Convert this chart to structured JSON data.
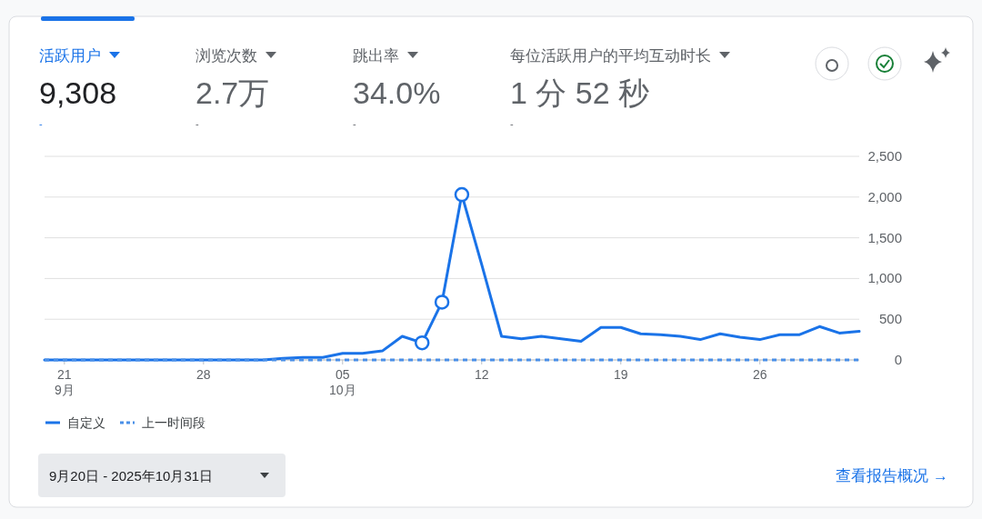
{
  "chart_data": [
    {
      "type": "other",
      "annotations": [
        "活跃用户",
        "9,308",
        "-",
        "浏览次数",
        "2.7万",
        "-",
        "跳出率",
        "34.0%",
        "-",
        "每位活跃用户的平均互动时长",
        "1 分 52 秒",
        "-"
      ]
    },
    {
      "type": "line",
      "x": [
        "2025-09-20",
        "2025-09-21",
        "2025-09-22",
        "2025-09-23",
        "2025-09-24",
        "2025-09-25",
        "2025-09-26",
        "2025-09-27",
        "2025-09-28",
        "2025-09-29",
        "2025-09-30",
        "2025-10-01",
        "2025-10-02",
        "2025-10-03",
        "2025-10-04",
        "2025-10-05",
        "2025-10-06",
        "2025-10-07",
        "2025-10-08",
        "2025-10-09",
        "2025-10-10",
        "2025-10-11",
        "2025-10-12",
        "2025-10-13",
        "2025-10-14",
        "2025-10-15",
        "2025-10-16",
        "2025-10-17",
        "2025-10-18",
        "2025-10-19",
        "2025-10-20",
        "2025-10-21",
        "2025-10-22",
        "2025-10-23",
        "2025-10-24",
        "2025-10-25",
        "2025-10-26",
        "2025-10-27",
        "2025-10-28",
        "2025-10-29",
        "2025-10-30",
        "2025-10-31"
      ],
      "series": [
        {
          "name": "自定义",
          "color": "#1a73e8",
          "values": [
            0,
            0,
            0,
            0,
            0,
            0,
            0,
            0,
            0,
            0,
            0,
            0,
            20,
            30,
            30,
            80,
            80,
            110,
            290,
            210,
            710,
            2030,
            1170,
            290,
            260,
            290,
            260,
            230,
            400,
            400,
            320,
            310,
            290,
            250,
            320,
            280,
            250,
            310,
            310,
            410,
            330,
            350
          ]
        },
        {
          "name": "上一时间段",
          "color": "#4a90e8",
          "line_style": "dashed",
          "values": [
            0,
            0,
            0,
            0,
            0,
            0,
            0,
            0,
            0,
            0,
            0,
            0,
            0,
            0,
            0,
            0,
            0,
            0,
            0,
            0,
            0,
            0,
            0,
            0,
            0,
            0,
            0,
            0,
            0,
            0,
            0,
            0,
            0,
            0,
            0,
            0,
            0,
            0,
            0,
            0,
            0,
            0
          ]
        },
        {
          "type": "scatter",
          "marker": "circle",
          "color": "#1a73e8",
          "x": [
            "2025-10-09",
            "2025-10-10",
            "2025-10-11"
          ],
          "values": [
            210,
            710,
            2030
          ]
        }
      ],
      "xlim": [
        "2025-09-20",
        "2025-10-31"
      ],
      "xticks": [
        {
          "value": "2025-09-21",
          "label": "21\n9月"
        },
        {
          "value": "2025-09-28",
          "label": "28"
        },
        {
          "value": "2025-10-05",
          "label": "05\n10月"
        },
        {
          "value": "2025-10-12",
          "label": "12"
        },
        {
          "value": "2025-10-19",
          "label": "19"
        },
        {
          "value": "2025-10-26",
          "label": "26"
        }
      ],
      "ylim": [
        0,
        2500
      ],
      "yticks": [
        0,
        {
          "value": 500,
          "label": "500"
        },
        {
          "value": 1000,
          "label": "1,000"
        },
        {
          "value": 1500,
          "label": "1,500"
        },
        {
          "value": 2000,
          "label": "2,000"
        },
        {
          "value": 2500,
          "label": "2,500"
        }
      ],
      "grid": "y",
      "legend": "bottom",
      "annotations": [
        "9月20日 - 2025年10月31日",
        "查看报告概况 →"
      ]
    }
  ]
}
